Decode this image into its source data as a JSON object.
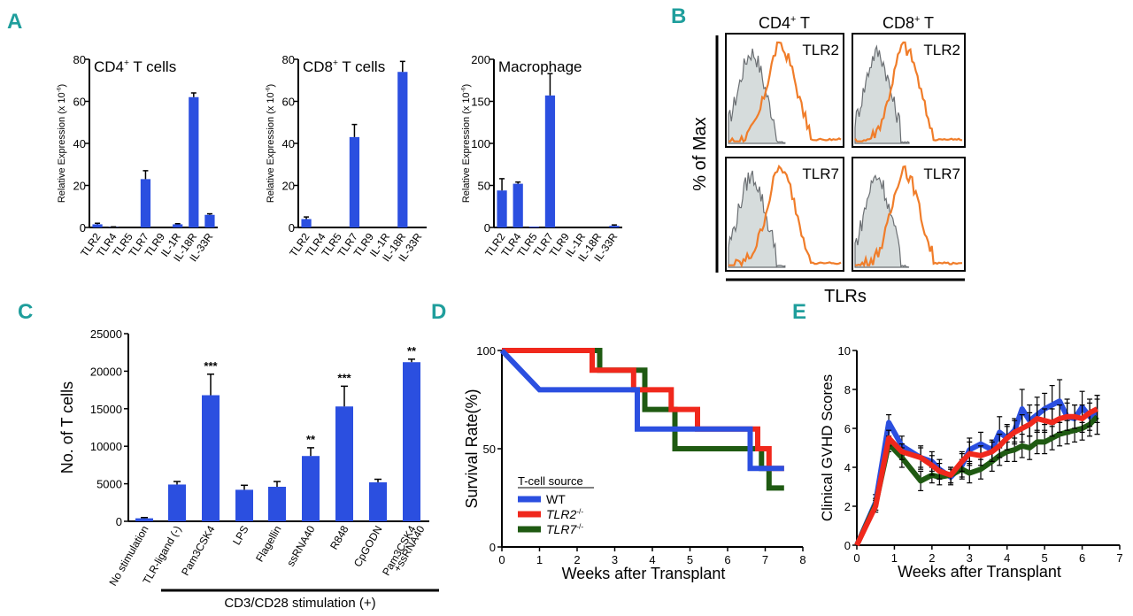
{
  "panel_labels": {
    "a": "A",
    "b": "B",
    "c": "C",
    "d": "D",
    "e": "E"
  },
  "colors": {
    "panel_label": "#1f9e9c",
    "bar": "#2b4fe0",
    "orange": "#f07d2a",
    "control_fill": "#d6dcdc",
    "control_line": "#6b6f73",
    "wt": "#2b4fe0",
    "tlr2": "#f0281c",
    "tlr7": "#1f5a12"
  },
  "panel_a": {
    "ylabel": "Relative Expression (x 10",
    "ylabel_sup": "-6",
    "ylabel_close": ")",
    "categories": [
      "TLR2",
      "TLR4",
      "TLR5",
      "TLR7",
      "TLR9",
      "IL-1R",
      "IL-18R",
      "IL-33R"
    ],
    "plots": [
      {
        "title_prefix": "CD4",
        "title_sup": "+",
        "title_suffix": " T cells",
        "ylim": [
          0,
          80
        ],
        "ticks": [
          0,
          20,
          40,
          60,
          80
        ],
        "values": [
          1.5,
          0.2,
          0,
          23,
          0,
          1.5,
          62,
          6
        ],
        "errors": [
          0.5,
          0.1,
          0,
          4,
          0,
          0.3,
          2,
          0.5
        ]
      },
      {
        "title_prefix": "CD8",
        "title_sup": "+",
        "title_suffix": " T cells",
        "ylim": [
          0,
          80
        ],
        "ticks": [
          0,
          20,
          40,
          60,
          80
        ],
        "values": [
          4,
          0,
          0,
          43,
          0,
          0,
          74,
          0
        ],
        "errors": [
          1,
          0,
          0,
          6,
          0,
          0,
          5,
          0
        ]
      },
      {
        "title_prefix": "Macrophage",
        "title_sup": "",
        "title_suffix": "",
        "ylim": [
          0,
          200
        ],
        "ticks": [
          0,
          50,
          100,
          150,
          200
        ],
        "values": [
          44,
          52,
          1,
          157,
          0,
          0,
          0,
          2
        ],
        "errors": [
          14,
          2,
          0,
          26,
          0,
          0,
          0,
          1
        ]
      }
    ]
  },
  "panel_b": {
    "ylabel": "% of Max",
    "xlabel": "TLRs",
    "columns": [
      {
        "prefix": "CD4",
        "sup": "+",
        "suffix": " T"
      },
      {
        "prefix": "CD8",
        "sup": "+",
        "suffix": " T"
      }
    ],
    "row_labels": [
      "TLR2",
      "TLR7"
    ]
  },
  "panel_c": {
    "ylabel": "No. of T cells",
    "ylim": [
      0,
      25000
    ],
    "ticks": [
      0,
      5000,
      10000,
      15000,
      20000,
      25000
    ],
    "categories": [
      "No stimulation",
      "TLR-ligand (-)",
      "Pam3CSK4",
      "LPS",
      "Flagellin",
      "ssRNA40",
      "R848",
      "CpGODN",
      "Pam3CSK4"
    ],
    "extra_label_line": "+ssRNA40",
    "values": [
      400,
      4900,
      16800,
      4200,
      4600,
      8700,
      15300,
      5200,
      21200
    ],
    "errors": [
      100,
      400,
      2800,
      600,
      700,
      1100,
      2700,
      400,
      400
    ],
    "significance": [
      "",
      "",
      "***",
      "",
      "",
      "**",
      "***",
      "",
      "**"
    ],
    "stim_label": "CD3/CD28 stimulation (+)"
  },
  "panel_d": {
    "ylabel": "Survival Rate(%)",
    "xlabel": "Weeks after Transplant",
    "xlim": [
      0,
      8
    ],
    "ylim": [
      0,
      100
    ],
    "xticks": [
      0,
      1,
      2,
      3,
      4,
      5,
      6,
      7,
      8
    ],
    "yticks": [
      0,
      50,
      100
    ],
    "legend_title": "T-cell source",
    "series": [
      {
        "name": "WT",
        "sup": "",
        "steps": [
          [
            0,
            100
          ],
          [
            1,
            80
          ],
          [
            3.6,
            80
          ],
          [
            3.6,
            60
          ],
          [
            6.6,
            60
          ],
          [
            6.6,
            40
          ],
          [
            7.5,
            40
          ]
        ]
      },
      {
        "name": "TLR2",
        "sup": "-/-",
        "steps": [
          [
            0,
            100
          ],
          [
            2.4,
            100
          ],
          [
            2.4,
            90
          ],
          [
            3.5,
            90
          ],
          [
            3.5,
            80
          ],
          [
            4.5,
            80
          ],
          [
            4.5,
            70
          ],
          [
            5.2,
            70
          ],
          [
            5.2,
            60
          ],
          [
            6.8,
            60
          ],
          [
            6.8,
            50
          ],
          [
            7.1,
            50
          ],
          [
            7.1,
            40
          ],
          [
            7.5,
            40
          ]
        ]
      },
      {
        "name": "TLR7",
        "sup": "-/-",
        "steps": [
          [
            0,
            100
          ],
          [
            2.6,
            100
          ],
          [
            2.6,
            90
          ],
          [
            3.8,
            90
          ],
          [
            3.8,
            70
          ],
          [
            4.6,
            70
          ],
          [
            4.6,
            50
          ],
          [
            6.9,
            50
          ],
          [
            6.9,
            40
          ],
          [
            7.1,
            40
          ],
          [
            7.1,
            30
          ],
          [
            7.5,
            30
          ]
        ]
      }
    ]
  },
  "panel_e": {
    "ylabel": "Clinical GVHD Scores",
    "xlabel": "Weeks after Transplant",
    "xlim": [
      0,
      7
    ],
    "ylim": [
      0,
      10
    ],
    "xticks": [
      0,
      1,
      2,
      3,
      4,
      5,
      6,
      7
    ],
    "yticks": [
      0,
      2,
      4,
      6,
      8,
      10
    ],
    "x": [
      0,
      0.5,
      0.85,
      1.2,
      1.7,
      2.0,
      2.2,
      2.5,
      2.8,
      3.0,
      3.3,
      3.6,
      3.8,
      4.0,
      4.2,
      4.4,
      4.6,
      4.8,
      5.0,
      5.2,
      5.4,
      5.6,
      5.8,
      6.0,
      6.2,
      6.4
    ],
    "series": [
      {
        "name": "WT",
        "values": [
          0,
          2.2,
          6.3,
          5.1,
          4.5,
          4.3,
          3.9,
          3.5,
          4.1,
          4.9,
          5.2,
          4.9,
          5.8,
          5.5,
          5.9,
          7.0,
          6.4,
          6.7,
          7.0,
          7.2,
          7.4,
          6.6,
          6.5,
          7.1,
          6.6,
          6.7
        ],
        "errors": [
          0,
          0.4,
          0.4,
          0.5,
          0.6,
          0.5,
          0.5,
          0.4,
          0.6,
          0.6,
          0.6,
          0.5,
          0.8,
          0.7,
          0.6,
          1.0,
          0.8,
          0.9,
          0.8,
          1.0,
          1.1,
          0.9,
          0.7,
          0.8,
          0.7,
          1.0
        ]
      },
      {
        "name": "TLR2",
        "values": [
          0,
          2.0,
          5.5,
          4.8,
          4.5,
          4.1,
          3.8,
          3.6,
          4.3,
          4.7,
          4.6,
          4.8,
          5.1,
          5.5,
          5.8,
          6.0,
          6.2,
          6.5,
          6.4,
          6.3,
          6.5,
          6.6,
          6.6,
          6.5,
          6.8,
          7.0
        ],
        "errors": [
          0,
          0.3,
          0.4,
          0.4,
          0.5,
          0.5,
          0.4,
          0.4,
          0.5,
          0.6,
          0.5,
          0.5,
          0.6,
          0.6,
          0.6,
          0.7,
          0.6,
          0.7,
          0.6,
          0.7,
          0.7,
          0.7,
          0.6,
          0.7,
          0.7,
          0.7
        ]
      },
      {
        "name": "TLR7",
        "values": [
          0,
          2.1,
          5.2,
          4.5,
          3.3,
          3.6,
          3.5,
          3.6,
          3.9,
          3.7,
          3.9,
          4.3,
          4.6,
          4.8,
          4.9,
          5.1,
          5.0,
          5.3,
          5.3,
          5.5,
          5.7,
          5.8,
          5.9,
          6.0,
          6.2,
          6.6
        ],
        "errors": [
          0,
          0.3,
          0.4,
          0.5,
          0.5,
          0.4,
          0.4,
          0.4,
          0.5,
          0.5,
          0.5,
          0.5,
          0.5,
          0.5,
          0.6,
          0.6,
          0.6,
          0.6,
          0.6,
          0.6,
          0.6,
          0.6,
          0.6,
          0.6,
          0.6,
          0.9
        ]
      }
    ]
  }
}
